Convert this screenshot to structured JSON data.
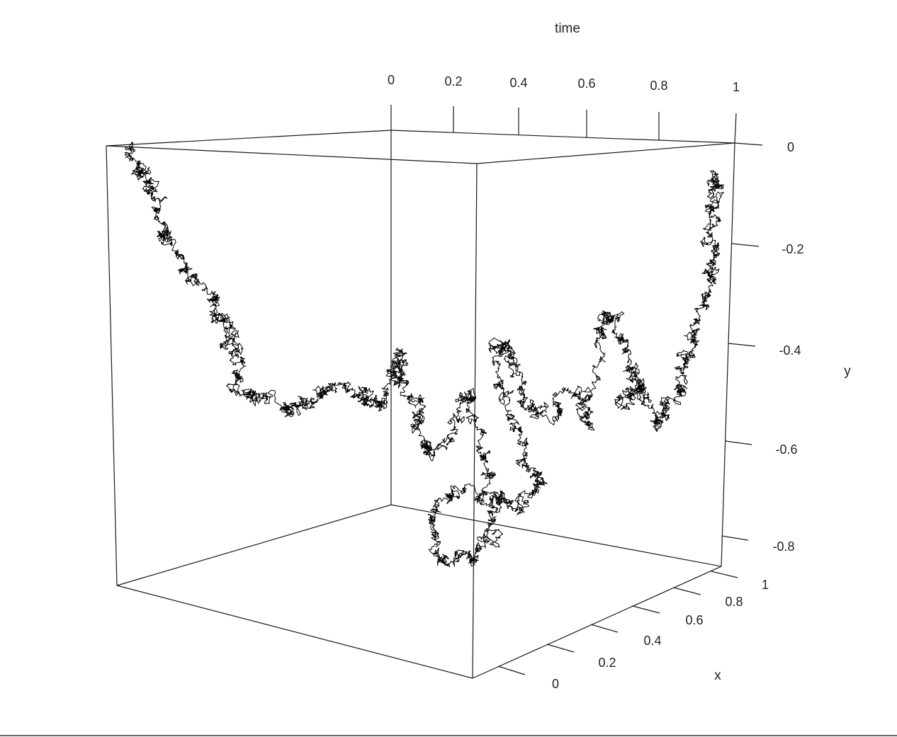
{
  "chart_data": {
    "type": "line",
    "projection": "3d-perspective",
    "description_axes": [
      "time",
      "x",
      "y"
    ],
    "xlabel": "x",
    "ylabel": "y",
    "zlabel": "time",
    "axes": {
      "time": {
        "label": "time",
        "range": [
          0,
          1
        ],
        "ticks": [
          0,
          0.2,
          0.4,
          0.6,
          0.8,
          1
        ],
        "tick_labels": [
          "0",
          "0.2",
          "0.4",
          "0.6",
          "0.8",
          "1"
        ]
      },
      "x": {
        "label": "x",
        "range": [
          -0.1,
          1
        ],
        "ticks": [
          0,
          0.2,
          0.4,
          0.6,
          0.8,
          1
        ],
        "tick_labels": [
          "0",
          "0.2",
          "0.4",
          "0.6",
          "0.8",
          "1"
        ]
      },
      "y": {
        "label": "y",
        "range": [
          -0.9,
          0
        ],
        "ticks": [
          0,
          -0.2,
          -0.4,
          -0.6,
          -0.8
        ],
        "tick_labels": [
          "0",
          "-0.2",
          "-0.4",
          "-0.6",
          "-0.8"
        ]
      }
    },
    "series": [
      {
        "style": "line",
        "color": "#000000",
        "note_anchor_points": [
          {
            "time": 0.0,
            "x": 0.0,
            "y": 0.0
          },
          {
            "time": 0.08,
            "x": 0.15,
            "y": -0.2
          },
          {
            "time": 0.15,
            "x": 0.25,
            "y": -0.4
          },
          {
            "time": 0.25,
            "x": 0.35,
            "y": -0.5
          },
          {
            "time": 0.35,
            "x": 0.45,
            "y": -0.55
          },
          {
            "time": 0.45,
            "x": 0.7,
            "y": -0.75
          },
          {
            "time": 0.55,
            "x": 0.75,
            "y": -0.7
          },
          {
            "time": 0.65,
            "x": 0.4,
            "y": -0.5
          },
          {
            "time": 0.75,
            "x": 0.3,
            "y": -0.35
          },
          {
            "time": 0.85,
            "x": 0.2,
            "y": -0.45
          },
          {
            "time": 1.0,
            "x": 0.0,
            "y": -0.05
          }
        ]
      }
    ],
    "grid": false,
    "legend": "none",
    "colors": {
      "line": "#000000",
      "box": "#1a1a1a",
      "text": "#222222",
      "background": "#ffffff"
    }
  }
}
